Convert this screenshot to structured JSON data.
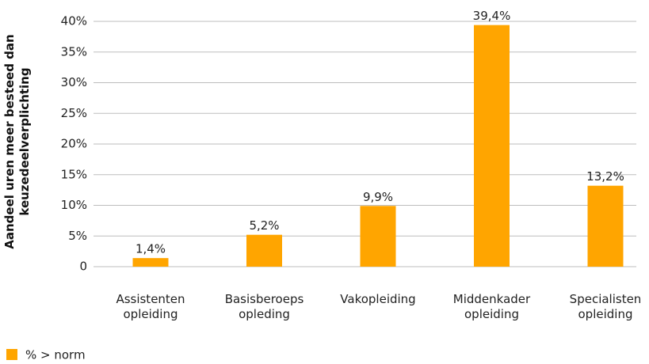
{
  "chart_data": {
    "type": "bar",
    "ylabel": "Aandeel uren meer besteed dan keuzedeelverplichting",
    "categories": [
      "Assistenten opleiding",
      "Basisberoeps opleding",
      "Vakopleiding",
      "Middenkader opleiding",
      "Specialisten opleiding"
    ],
    "series": [
      {
        "name": "% > norm",
        "color": "#FFA500",
        "values": [
          1.4,
          5.2,
          9.9,
          39.4,
          13.2
        ],
        "value_labels": [
          "1,4%",
          "5,2%",
          "9,9%",
          "39,4%",
          "13,2%"
        ]
      }
    ],
    "ylim": [
      0,
      40
    ],
    "yticks": [
      0,
      {
        "value": 5,
        "label": "5%"
      },
      {
        "value": 10,
        "label": "10%"
      },
      {
        "value": 15,
        "label": "15%"
      },
      {
        "value": 20,
        "label": "20%"
      },
      {
        "value": 25,
        "label": "25%"
      },
      {
        "value": 30,
        "label": "30%"
      },
      {
        "value": 35,
        "label": "35%"
      },
      {
        "value": 40,
        "label": "40%"
      }
    ],
    "grid": true,
    "legend": "bottom-left"
  }
}
